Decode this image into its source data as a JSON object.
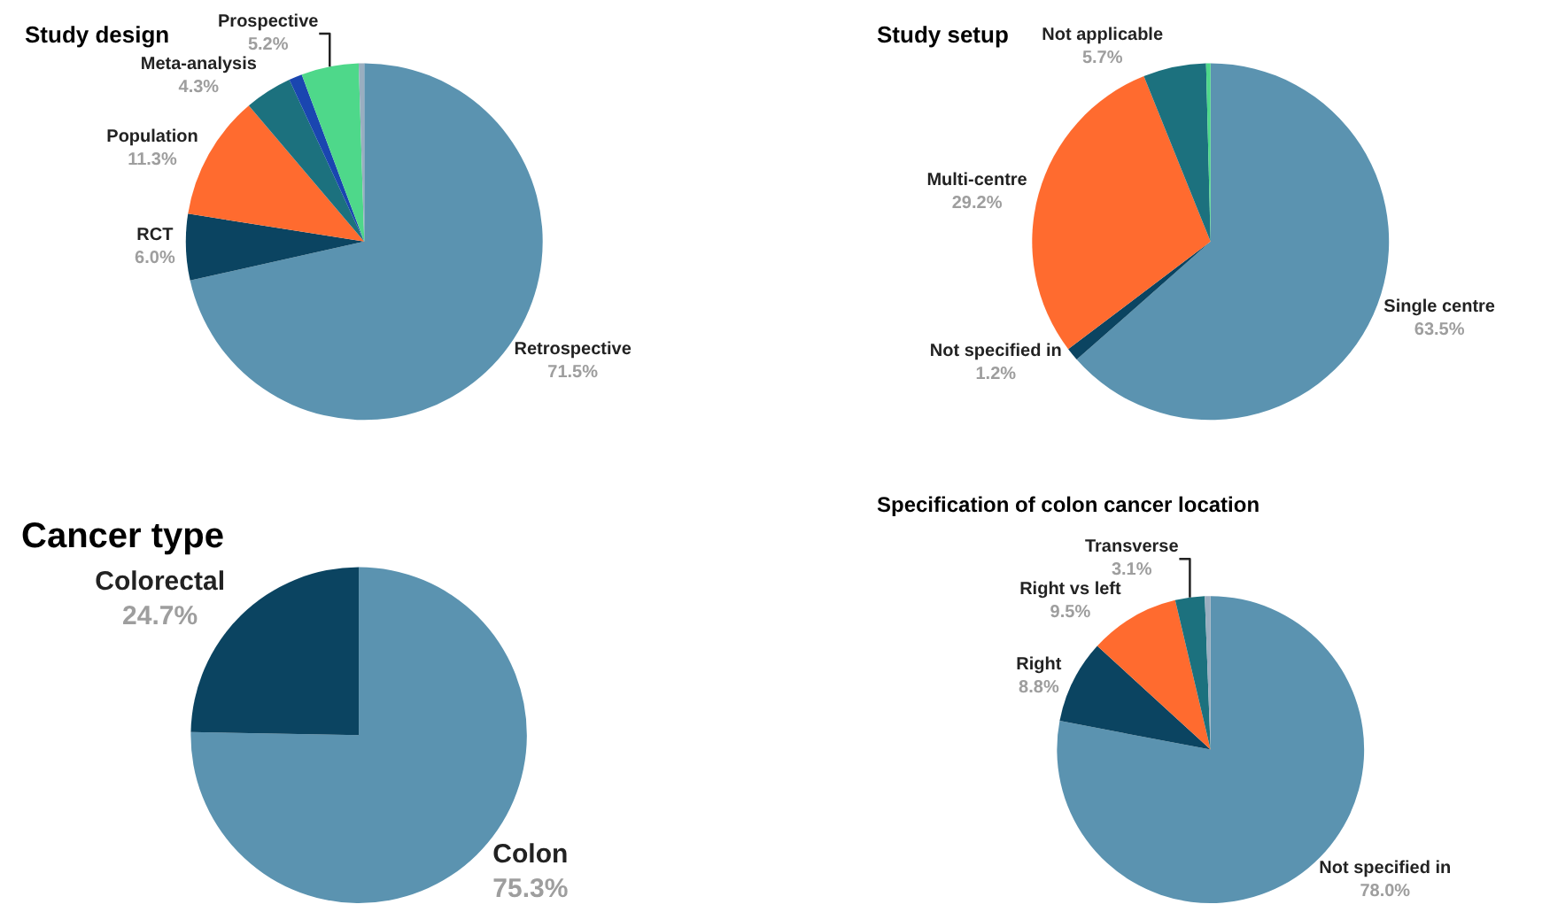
{
  "chart_data": [
    {
      "type": "pie",
      "title": "Study design",
      "categories": [
        "Retrospective",
        "RCT",
        "Population",
        "Meta-analysis",
        null,
        "Prospective",
        null
      ],
      "values": [
        71.5,
        6.0,
        11.3,
        4.3,
        1.2,
        5.2,
        0.5
      ],
      "value_labels": [
        "71.5%",
        "6.0%",
        "11.3%",
        "4.3%",
        null,
        "5.2%",
        null
      ],
      "colors": [
        "#5b93b0",
        "#0b4461",
        "#ff6b2f",
        "#1c717e",
        "#1a46b0",
        "#4ed88a",
        "#9aaec0"
      ]
    },
    {
      "type": "pie",
      "title": "Study setup",
      "categories": [
        "Single centre",
        "Not specified in",
        "Multi-centre",
        "Not applicable",
        null
      ],
      "values": [
        63.5,
        1.2,
        29.2,
        5.7,
        0.4
      ],
      "value_labels": [
        "63.5%",
        "1.2%",
        "29.2%",
        "5.7%",
        null
      ],
      "colors": [
        "#5b93b0",
        "#0b4461",
        "#ff6b2f",
        "#1c717e",
        "#4ed88a"
      ]
    },
    {
      "type": "pie",
      "title": "Cancer type",
      "categories": [
        "Colon",
        "Colorectal"
      ],
      "values": [
        75.3,
        24.7
      ],
      "value_labels": [
        "75.3%",
        "24.7%"
      ],
      "colors": [
        "#5b93b0",
        "#0b4461"
      ]
    },
    {
      "type": "pie",
      "title": "Specification of colon cancer location",
      "categories": [
        "Not specified in",
        "Right",
        "Right vs left",
        "Transverse",
        null
      ],
      "values": [
        78.0,
        8.8,
        9.5,
        3.1,
        0.6
      ],
      "value_labels": [
        "78.0%",
        "8.8%",
        "9.5%",
        "3.1%",
        null
      ],
      "colors": [
        "#5b93b0",
        "#0b4461",
        "#ff6b2f",
        "#1c717e",
        "#9aaec0"
      ]
    }
  ]
}
